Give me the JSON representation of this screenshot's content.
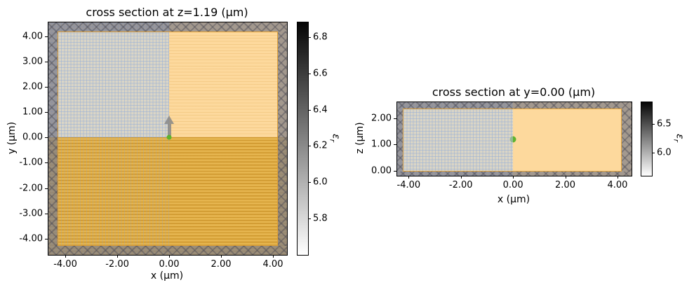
{
  "figure": {
    "background": "#ffffff"
  },
  "colors": {
    "pml_gray": "#80808a",
    "mesh_fill": "#dad5c6",
    "mesh_grid_line": "#96afd7",
    "structure_light_orange": "#fdd99d",
    "substrate_gold": "#e5b44e",
    "substrate_stripe": "#ba7d11",
    "structure_edge_orange": "#e19e31",
    "marker_green": "#5db32e",
    "arrow_gray": "#878787",
    "colorbar_top": "#050505",
    "colorbar_bottom": "#ffffff"
  },
  "chart_data": [
    {
      "type": "heatmap",
      "title": "cross section at z=1.19 (μm)",
      "xlabel": "x (μm)",
      "ylabel": "y (μm)",
      "xlim": [
        -4.65,
        4.54
      ],
      "ylim_top_bottom": [
        4.55,
        -4.64
      ],
      "xticks": [
        -4,
        -2,
        0,
        2,
        4
      ],
      "xtick_labels": [
        "-4.00",
        "-2.00",
        "0.00",
        "2.00",
        "4.00"
      ],
      "yticks": [
        4,
        3,
        2,
        1,
        0,
        -1,
        -2,
        -3,
        -4
      ],
      "ytick_labels": [
        "4.00",
        "3.00",
        "2.00",
        "1.00",
        "0.00",
        "-1.00",
        "-2.00",
        "-3.00",
        "-4.00"
      ],
      "grid": false,
      "regions": [
        {
          "name": "background-with-mesh",
          "x": [
            -4.3,
            0
          ],
          "y": [
            0,
            4.2
          ],
          "fill": "gray mesh grid"
        },
        {
          "name": "upper-right-structure",
          "x": [
            0,
            4.2
          ],
          "y": [
            0,
            4.2
          ],
          "fill": "light orange"
        },
        {
          "name": "substrate",
          "x": [
            -4.3,
            4.2
          ],
          "y": [
            -4.3,
            0
          ],
          "fill": "gold with horizontal stripes"
        },
        {
          "name": "pml-boundary-frame",
          "fill": "gray with x hatch",
          "thickness_um": 0.35
        }
      ],
      "marker": {
        "x": 0,
        "y": 0
      },
      "arrow": {
        "x": 0,
        "y_from": 0,
        "y_to": 0.9,
        "direction": "+y"
      },
      "colorbar": {
        "label": "εr",
        "label_symbol": "ε",
        "label_sub": "r",
        "vmin": 5.6,
        "vmax": 6.88,
        "ticks": [
          6.8,
          6.6,
          6.4,
          6.2,
          6.0,
          5.8
        ],
        "tick_labels": [
          "6.8",
          "6.6",
          "6.4",
          "6.2",
          "6.0",
          "5.8"
        ]
      }
    },
    {
      "type": "heatmap",
      "title": "cross section at y=0.00 (μm)",
      "xlabel": "x (μm)",
      "ylabel": "z (μm)",
      "xlim": [
        -4.44,
        4.54
      ],
      "ylim_top_bottom": [
        2.61,
        -0.19
      ],
      "xticks": [
        -4,
        -2,
        0,
        2,
        4
      ],
      "xtick_labels": [
        "-4.00",
        "-2.00",
        "0.00",
        "2.00",
        "4.00"
      ],
      "yticks": [
        2,
        1,
        0
      ],
      "ytick_labels": [
        "2.00",
        "1.00",
        "0.00"
      ],
      "grid": false,
      "regions": [
        {
          "name": "background-with-mesh",
          "x": [
            -4.25,
            0
          ],
          "z": [
            -0.05,
            2.37
          ],
          "fill": "gray mesh grid"
        },
        {
          "name": "right-structure",
          "x": [
            0,
            4.17
          ],
          "z": [
            -0.05,
            2.37
          ],
          "fill": "light orange"
        },
        {
          "name": "pml-boundary-frame",
          "fill": "gray with x hatch"
        }
      ],
      "marker": {
        "x": 0,
        "y": 1.19
      },
      "colorbar": {
        "label": "εr",
        "label_symbol": "ε",
        "label_sub": "r",
        "vmin": 5.6,
        "vmax": 6.88,
        "ticks": [
          6.5,
          6.0
        ],
        "tick_labels": [
          "6.5",
          "6.0"
        ]
      }
    }
  ]
}
